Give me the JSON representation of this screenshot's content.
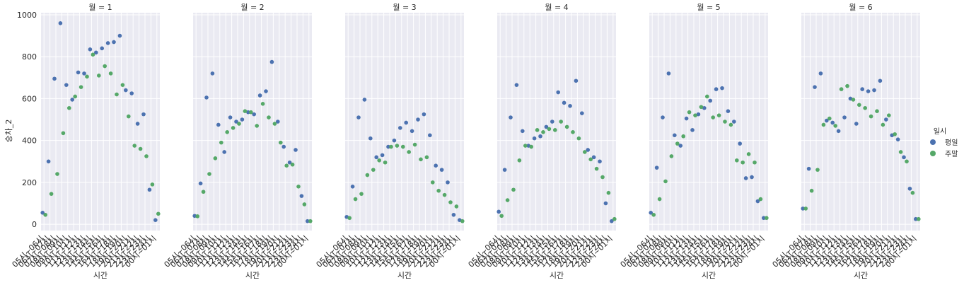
{
  "colors": {
    "weekday": "#4c72b0",
    "weekend": "#55a868",
    "panel_bg": "#eaeaf2"
  },
  "chart_data": {
    "type": "scatter",
    "y_label": "승차_2",
    "x_label": "시간",
    "ylim": [
      -30,
      1010
    ],
    "yticks": [
      0,
      200,
      400,
      600,
      800,
      1000
    ],
    "grid": true,
    "legend_title": "일시",
    "legend_placement": "right",
    "x_categories": [
      "05시~06시",
      "06시~07시",
      "07시~08시",
      "08시~09시",
      "09시~10시",
      "10시~11시",
      "11시~12시",
      "12시~13시",
      "13시~14시",
      "14시~15시",
      "15시~16시",
      "16시~17시",
      "17시~18시",
      "18시~19시",
      "19시~20시",
      "20시~21시",
      "21시~22시",
      "22시~23시",
      "23시~24시",
      "00시~01시"
    ],
    "series_names": [
      "평일",
      "주말"
    ],
    "panels": [
      {
        "title": "월 = 1",
        "weekday": [
          55,
          300,
          695,
          960,
          665,
          595,
          725,
          720,
          835,
          820,
          840,
          865,
          870,
          900,
          640,
          625,
          480,
          525,
          165,
          20
        ],
        "weekend": [
          45,
          145,
          240,
          435,
          555,
          610,
          655,
          705,
          810,
          710,
          755,
          720,
          620,
          665,
          515,
          375,
          360,
          325,
          190,
          50
        ]
      },
      {
        "title": "월 = 2",
        "weekday": [
          40,
          195,
          605,
          720,
          475,
          345,
          510,
          490,
          500,
          535,
          525,
          615,
          635,
          775,
          490,
          370,
          295,
          355,
          135,
          15
        ],
        "weekend": [
          38,
          155,
          240,
          315,
          390,
          440,
          460,
          480,
          540,
          535,
          470,
          575,
          510,
          480,
          390,
          280,
          285,
          180,
          95,
          15
        ]
      },
      {
        "title": "월 = 3",
        "weekday": [
          35,
          180,
          510,
          595,
          410,
          320,
          330,
          370,
          400,
          460,
          485,
          445,
          500,
          525,
          425,
          280,
          260,
          200,
          45,
          20
        ],
        "weekend": [
          30,
          120,
          145,
          235,
          260,
          305,
          295,
          370,
          375,
          370,
          345,
          380,
          310,
          320,
          200,
          160,
          140,
          105,
          85,
          15
        ]
      },
      {
        "title": "월 = 4",
        "weekday": [
          60,
          260,
          510,
          665,
          445,
          375,
          410,
          420,
          465,
          490,
          630,
          580,
          565,
          685,
          530,
          355,
          320,
          300,
          100,
          15
        ],
        "weekend": [
          40,
          115,
          165,
          305,
          375,
          370,
          450,
          440,
          455,
          450,
          490,
          465,
          440,
          410,
          345,
          310,
          265,
          225,
          150,
          25
        ]
      },
      {
        "title": "월 = 5",
        "weekday": [
          55,
          270,
          510,
          720,
          425,
          375,
          505,
          450,
          525,
          555,
          590,
          645,
          650,
          540,
          490,
          385,
          220,
          225,
          110,
          30
        ],
        "weekend": [
          45,
          120,
          205,
          325,
          385,
          420,
          535,
          520,
          560,
          610,
          510,
          520,
          490,
          475,
          305,
          295,
          335,
          295,
          120,
          30
        ]
      },
      {
        "title": "월 = 6",
        "weekday": [
          75,
          265,
          655,
          720,
          495,
          485,
          445,
          510,
          600,
          480,
          645,
          635,
          640,
          685,
          500,
          425,
          405,
          320,
          170,
          25
        ],
        "weekend": [
          75,
          160,
          260,
          475,
          505,
          470,
          645,
          660,
          595,
          570,
          555,
          515,
          540,
          475,
          520,
          430,
          345,
          300,
          150,
          25
        ]
      }
    ]
  }
}
